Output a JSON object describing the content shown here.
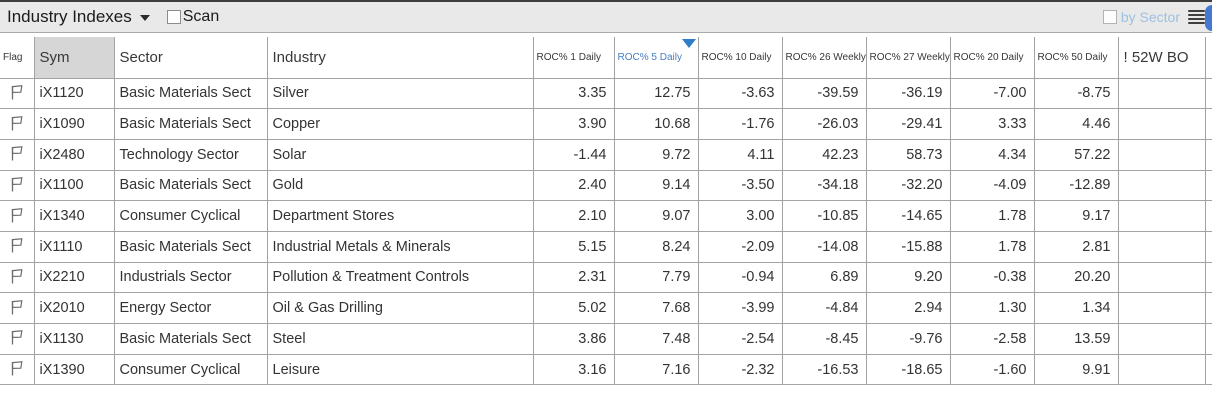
{
  "toolbar": {
    "title": "Industry Indexes",
    "dropdown_icon": "chevron-down",
    "scan": {
      "label": "Scan",
      "checked": false
    },
    "by_sector": {
      "label": "by Sector",
      "checked": false,
      "label_color": "#9dc1e0"
    },
    "menu_icon": "hamburger-menu",
    "edge_button_color": "#4579d1"
  },
  "table": {
    "sort": {
      "column": "ROC% 5 Daily",
      "direction": "desc",
      "indicator_color": "#2f7cc8",
      "sorted_header_color": "#4a7ec0"
    },
    "columns": [
      {
        "key": "flag",
        "label": "Flag"
      },
      {
        "key": "sym",
        "label": "Sym"
      },
      {
        "key": "sector",
        "label": "Sector"
      },
      {
        "key": "industry",
        "label": "Industry"
      },
      {
        "key": "roc1d",
        "label": "ROC% 1 Daily"
      },
      {
        "key": "roc5d",
        "label": "ROC% 5 Daily"
      },
      {
        "key": "roc10d",
        "label": "ROC% 10 Daily"
      },
      {
        "key": "roc26w",
        "label": "ROC% 26 Weekly"
      },
      {
        "key": "roc27w",
        "label": "ROC% 27 Weekly"
      },
      {
        "key": "roc20d",
        "label": "ROC% 20 Daily"
      },
      {
        "key": "roc50d",
        "label": "ROC% 50 Daily"
      },
      {
        "key": "bo52w",
        "label": "! 52W BO"
      }
    ],
    "rows": [
      {
        "sym": "iX1120",
        "sector": "Basic Materials Sect",
        "industry": "Silver",
        "values": [
          "3.35",
          "12.75",
          "-3.63",
          "-39.59",
          "-36.19",
          "-7.00",
          "-8.75"
        ],
        "bo52w": ""
      },
      {
        "sym": "iX1090",
        "sector": "Basic Materials Sect",
        "industry": "Copper",
        "values": [
          "3.90",
          "10.68",
          "-1.76",
          "-26.03",
          "-29.41",
          "3.33",
          "4.46"
        ],
        "bo52w": ""
      },
      {
        "sym": "iX2480",
        "sector": "Technology Sector",
        "industry": "Solar",
        "values": [
          "-1.44",
          "9.72",
          "4.11",
          "42.23",
          "58.73",
          "4.34",
          "57.22"
        ],
        "bo52w": ""
      },
      {
        "sym": "iX1100",
        "sector": "Basic Materials Sect",
        "industry": "Gold",
        "values": [
          "2.40",
          "9.14",
          "-3.50",
          "-34.18",
          "-32.20",
          "-4.09",
          "-12.89"
        ],
        "bo52w": ""
      },
      {
        "sym": "iX1340",
        "sector": "Consumer Cyclical",
        "industry": "Department Stores",
        "values": [
          "2.10",
          "9.07",
          "3.00",
          "-10.85",
          "-14.65",
          "1.78",
          "9.17"
        ],
        "bo52w": ""
      },
      {
        "sym": "iX1110",
        "sector": "Basic Materials Sect",
        "industry": "Industrial Metals & Minerals",
        "values": [
          "5.15",
          "8.24",
          "-2.09",
          "-14.08",
          "-15.88",
          "1.78",
          "2.81"
        ],
        "bo52w": ""
      },
      {
        "sym": "iX2210",
        "sector": "Industrials Sector",
        "industry": "Pollution & Treatment Controls",
        "values": [
          "2.31",
          "7.79",
          "-0.94",
          "6.89",
          "9.20",
          "-0.38",
          "20.20"
        ],
        "bo52w": ""
      },
      {
        "sym": "iX2010",
        "sector": "Energy Sector",
        "industry": "Oil & Gas Drilling",
        "values": [
          "5.02",
          "7.68",
          "-3.99",
          "-4.84",
          "2.94",
          "1.30",
          "1.34"
        ],
        "bo52w": ""
      },
      {
        "sym": "iX1130",
        "sector": "Basic Materials Sect",
        "industry": "Steel",
        "values": [
          "3.86",
          "7.48",
          "-2.54",
          "-8.45",
          "-9.76",
          "-2.58",
          "13.59"
        ],
        "bo52w": ""
      },
      {
        "sym": "iX1390",
        "sector": "Consumer Cyclical",
        "industry": "Leisure",
        "values": [
          "3.16",
          "7.16",
          "-2.32",
          "-16.53",
          "-18.65",
          "-1.60",
          "9.91"
        ],
        "bo52w": ""
      }
    ]
  }
}
